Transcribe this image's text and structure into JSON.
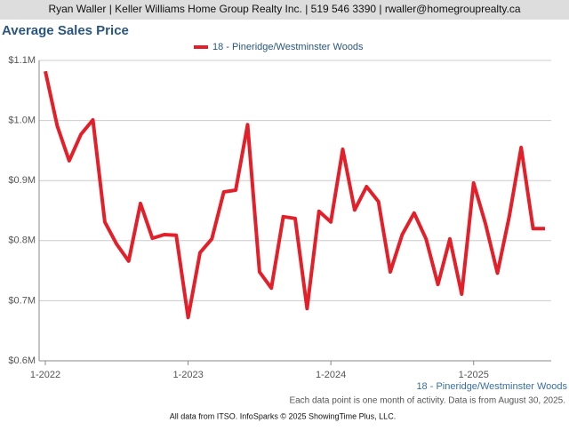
{
  "header": "Ryan Waller | Keller Williams Home Group Realty Inc. | 519 546 3390 | rwaller@homegrouprealty.ca",
  "chart_data": {
    "type": "line",
    "title": "Average Sales Price",
    "categories": [
      "1-2022",
      null,
      null,
      null,
      null,
      null,
      null,
      null,
      null,
      null,
      null,
      null,
      "1-2023",
      null,
      null,
      null,
      null,
      null,
      null,
      null,
      null,
      null,
      null,
      null,
      "1-2024",
      null,
      null,
      null,
      null,
      null,
      null,
      null,
      null,
      null,
      null,
      null,
      "1-2025",
      null,
      null,
      null,
      null,
      null,
      null
    ],
    "series": [
      {
        "name": "18 - Pineridge/Westminster Woods",
        "color": "#e3202a",
        "values": [
          1082000,
          991000,
          933000,
          977000,
          1001000,
          831000,
          794000,
          766000,
          862000,
          804000,
          810000,
          809000,
          672000,
          780000,
          803000,
          881000,
          884000,
          993000,
          748000,
          721000,
          840000,
          837000,
          687000,
          849000,
          831000,
          952000,
          851000,
          890000,
          865000,
          748000,
          810000,
          846000,
          803000,
          727000,
          803000,
          711000,
          896000,
          828000,
          746000,
          841000,
          955000,
          820000,
          820000
        ]
      }
    ],
    "ylim": [
      600000,
      1100000
    ],
    "yticks": [
      {
        "value": 600000,
        "label": "$0.6M"
      },
      {
        "value": 700000,
        "label": "$0.7M"
      },
      {
        "value": 800000,
        "label": "$0.8M"
      },
      {
        "value": 900000,
        "label": "$0.9M"
      },
      {
        "value": 1000000,
        "label": "$1.0M"
      },
      {
        "value": 1100000,
        "label": "$1.1M"
      }
    ],
    "grid": true,
    "area_label": "18 - Pineridge/Westminster Woods",
    "note": "Each data point is one month of activity. Data is from August 30, 2025.",
    "footer": "All data from ITSO. InfoSparks © 2025 ShowingTime Plus, LLC."
  }
}
